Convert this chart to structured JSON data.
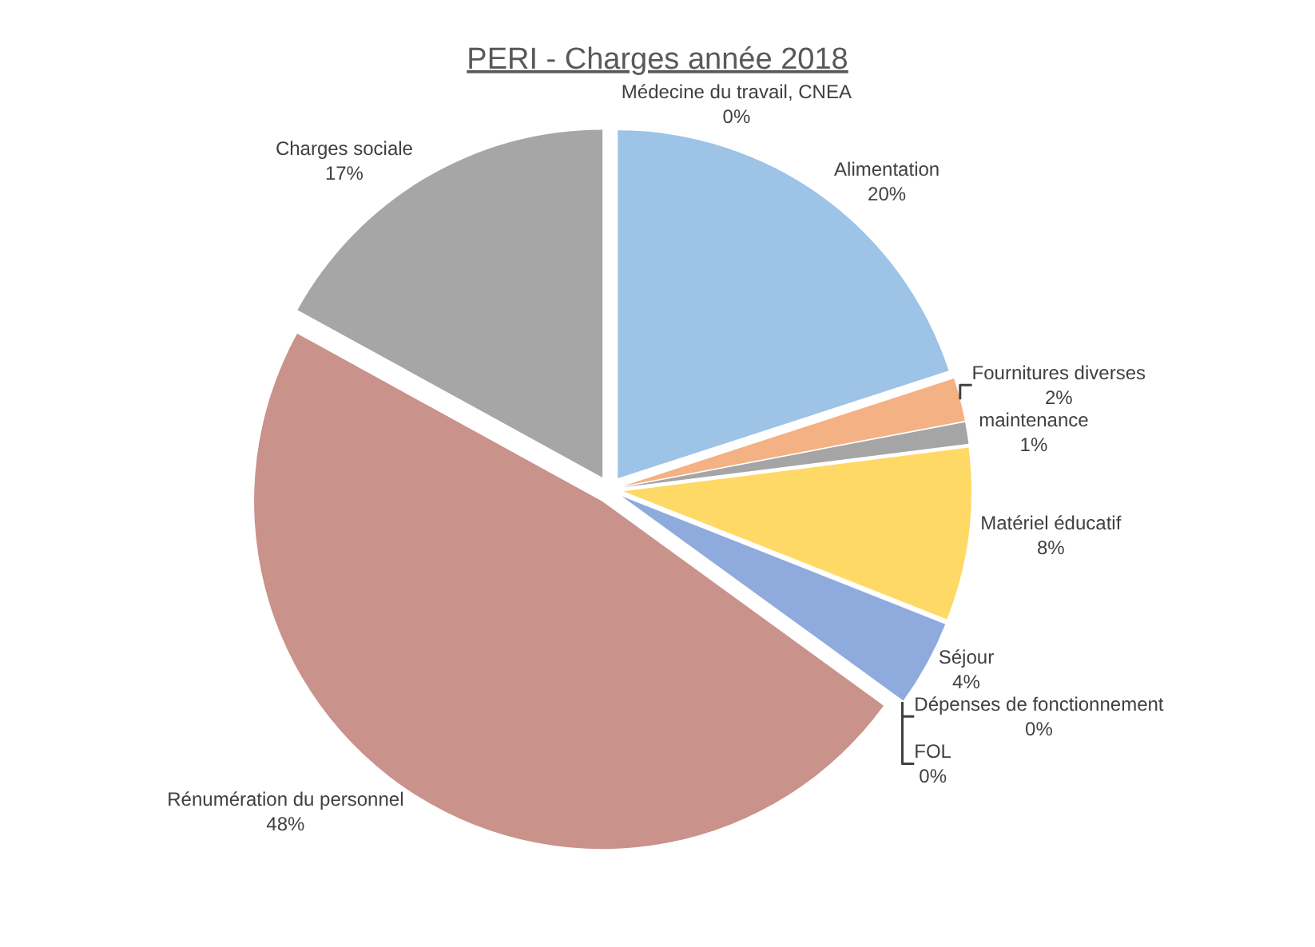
{
  "chart_data": {
    "type": "pie",
    "title": "PERI - Charges année 2018",
    "categories": [
      "Alimentation",
      "Fournitures diverses",
      "maintenance",
      "Matériel éducatif",
      "Séjour",
      "Dépenses de fonctionnement",
      "FOL",
      "Rénumération du personnel",
      "Charges sociale",
      "Médecine du travail, CNEA"
    ],
    "values": [
      20,
      2,
      1,
      8,
      4,
      0,
      0,
      48,
      17,
      0
    ],
    "value_labels": [
      "20%",
      "2%",
      "1%",
      "8%",
      "4%",
      "0%",
      "0%",
      "48%",
      "17%",
      "0%"
    ],
    "colors": [
      "#9dc3e6",
      "#f4b183",
      "#a5a5a5",
      "#ffd966",
      "#8faadc",
      "#a9d18e",
      "#70ad47",
      "#c9928a",
      "#a6a6a6",
      "#c5a07a"
    ]
  }
}
